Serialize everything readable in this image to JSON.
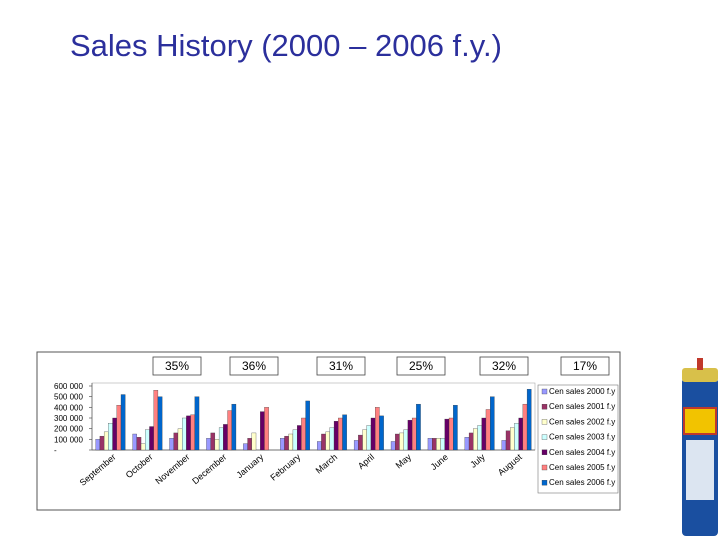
{
  "chart_data": {
    "type": "bar",
    "title": "Sales History (2000 – 2006 f.y.)",
    "categories": [
      "September",
      "October",
      "November",
      "December",
      "January",
      "February",
      "March",
      "April",
      "May",
      "June",
      "July",
      "August"
    ],
    "series": [
      {
        "name": "Cen sales 2000 f.y",
        "color": "#9999ff",
        "values": [
          100000,
          150000,
          110000,
          110000,
          60000,
          110000,
          80000,
          90000,
          80000,
          110000,
          120000,
          90000
        ]
      },
      {
        "name": "Cen sales 2001 f.y",
        "color": "#993366",
        "values": [
          130000,
          120000,
          160000,
          160000,
          110000,
          130000,
          150000,
          140000,
          150000,
          110000,
          160000,
          180000
        ]
      },
      {
        "name": "Cen sales 2002 f.y",
        "color": "#ffffcc",
        "values": [
          170000,
          60000,
          200000,
          100000,
          160000,
          150000,
          170000,
          190000,
          160000,
          110000,
          200000,
          210000
        ]
      },
      {
        "name": "Cen sales 2003 f.y",
        "color": "#ccffff",
        "values": [
          250000,
          190000,
          300000,
          210000,
          0,
          190000,
          210000,
          230000,
          190000,
          110000,
          230000,
          250000
        ]
      },
      {
        "name": "Cen sales 2004 f.y",
        "color": "#660066",
        "values": [
          300000,
          220000,
          320000,
          240000,
          360000,
          230000,
          270000,
          300000,
          280000,
          290000,
          300000,
          300000
        ]
      },
      {
        "name": "Cen sales 2005 f.y",
        "color": "#ff8080",
        "values": [
          420000,
          560000,
          330000,
          370000,
          400000,
          300000,
          300000,
          400000,
          300000,
          300000,
          380000,
          430000
        ]
      },
      {
        "name": "Cen sales 2006 f.y",
        "color": "#0066cc",
        "values": [
          520000,
          500000,
          500000,
          430000,
          0,
          460000,
          330000,
          320000,
          430000,
          420000,
          500000,
          570000
        ]
      }
    ],
    "annotations": [
      "35%",
      "36%",
      "31%",
      "25%",
      "32%",
      "17%"
    ],
    "ylim": [
      0,
      600000
    ],
    "yticks": [
      {
        "value": 0,
        "label": "-"
      },
      {
        "value": 100000,
        "label": "100 000"
      },
      {
        "value": 200000,
        "label": "200 000"
      },
      {
        "value": 300000,
        "label": "300 000"
      },
      {
        "value": 400000,
        "label": "400 000"
      },
      {
        "value": 500000,
        "label": "500 000"
      },
      {
        "value": 600000,
        "label": "600 000"
      }
    ],
    "grid": false,
    "legend": "right"
  }
}
